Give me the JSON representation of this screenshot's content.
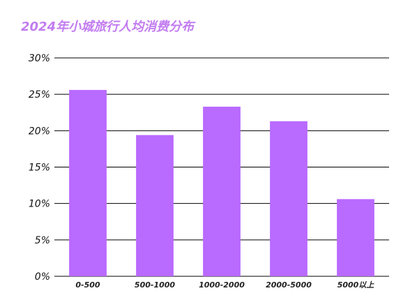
{
  "chart_data": {
    "type": "bar",
    "title": "2024年小城旅行人均消费分布",
    "categories": [
      "0-500",
      "500-1000",
      "1000-2000",
      "2000-5000",
      "5000以上"
    ],
    "values": [
      25.6,
      19.4,
      23.3,
      21.3,
      10.6
    ],
    "ylim": [
      0,
      30
    ],
    "yticks": [
      "0%",
      "5%",
      "10%",
      "15%",
      "20%",
      "25%",
      "30%"
    ],
    "ytick_values": [
      0,
      5,
      10,
      15,
      20,
      25,
      30
    ],
    "xlabel": "",
    "ylabel": "",
    "grid": true,
    "bar_color": "#b96aff",
    "title_color": "#c27cf0",
    "grid_color": "#000000"
  }
}
